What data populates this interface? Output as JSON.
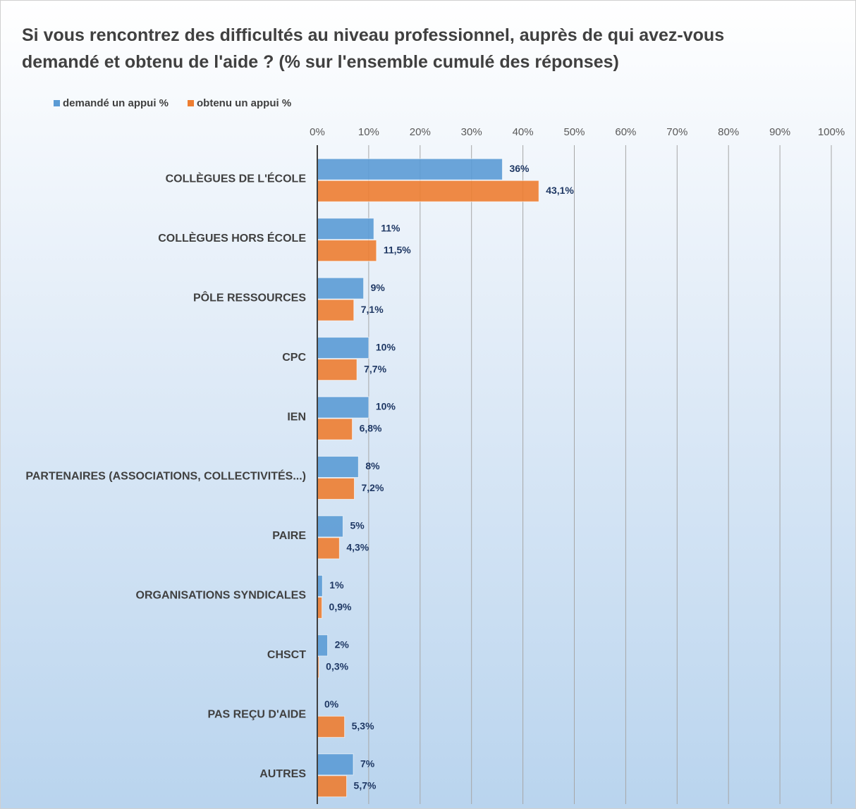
{
  "chart_data": {
    "type": "barh",
    "title": "Si vous rencontrez des difficultés au niveau professionnel, auprès de qui avez-vous demandé et obtenu de l'aide ? (% sur l'ensemble cumulé des réponses)",
    "categories": [
      "COLLÈGUES DE L'ÉCOLE",
      "COLLÈGUES HORS ÉCOLE",
      "PÔLE RESSOURCES",
      "CPC",
      "IEN",
      "PARTENAIRES (ASSOCIATIONS, COLLECTIVITÉS...)",
      "PAIRE",
      "ORGANISATIONS SYNDICALES",
      "CHSCT",
      "PAS REÇU D'AIDE",
      "AUTRES"
    ],
    "series": [
      {
        "name": "demandé un appui %",
        "color": "#5b9bd5",
        "values": [
          36,
          11,
          9,
          10,
          10,
          8,
          5,
          1,
          2,
          0,
          7
        ],
        "value_labels": [
          "36%",
          "11%",
          "9%",
          "10%",
          "10%",
          "8%",
          "5%",
          "1%",
          "2%",
          "0%",
          "7%"
        ]
      },
      {
        "name": "obtenu un appui %",
        "color": "#ed7d31",
        "values": [
          43.1,
          11.5,
          7.1,
          7.7,
          6.8,
          7.2,
          4.3,
          0.9,
          0.3,
          5.3,
          5.7
        ],
        "value_labels": [
          "43,1%",
          "11,5%",
          "7,1%",
          "7,7%",
          "6,8%",
          "7,2%",
          "4,3%",
          "0,9%",
          "0,3%",
          "5,3%",
          "5,7%"
        ]
      }
    ],
    "xlim": [
      0,
      100
    ],
    "xticks": [
      {
        "value": 0,
        "label": "0%"
      },
      {
        "value": 10,
        "label": "10%"
      },
      {
        "value": 20,
        "label": "20%"
      },
      {
        "value": 30,
        "label": "30%"
      },
      {
        "value": 40,
        "label": "40%"
      },
      {
        "value": 50,
        "label": "50%"
      },
      {
        "value": 60,
        "label": "60%"
      },
      {
        "value": 70,
        "label": "70%"
      },
      {
        "value": 80,
        "label": "80%"
      },
      {
        "value": 90,
        "label": "90%"
      },
      {
        "value": 100,
        "label": "100%"
      }
    ],
    "grid": true,
    "legend": "top-left"
  }
}
